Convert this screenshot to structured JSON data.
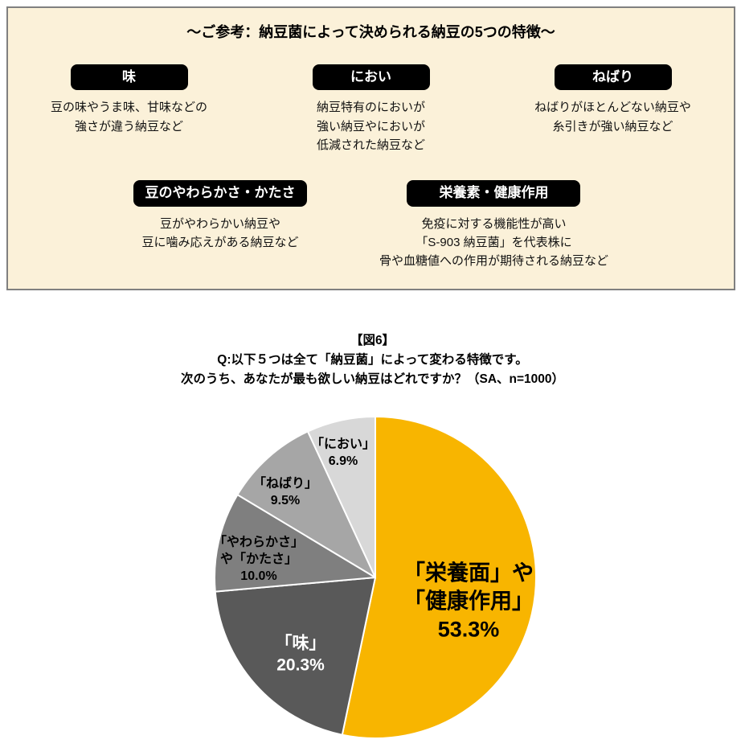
{
  "reference_box": {
    "title": "～ご参考：納豆菌によって決められる納豆の5つの特徴～",
    "features": [
      {
        "label": "味",
        "desc_lines": [
          "豆の味やうま味、甘味などの",
          "強さが違う納豆など"
        ]
      },
      {
        "label": "におい",
        "desc_lines": [
          "納豆特有のにおいが",
          "強い納豆やにおいが",
          "低減された納豆など"
        ]
      },
      {
        "label": "ねばり",
        "desc_lines": [
          "ねばりがほとんどない納豆や",
          "糸引きが強い納豆など"
        ]
      },
      {
        "label": "豆のやわらかさ・かたさ",
        "desc_lines": [
          "豆がやわらかい納豆や",
          "豆に噛み応えがある納豆など"
        ]
      },
      {
        "label": "栄養素・健康作用",
        "desc_lines": [
          "免疫に対する機能性が高い",
          "「S-903 納豆菌」を代表株に",
          "骨や血糖値への作用が期待される納豆など"
        ]
      }
    ]
  },
  "chart": {
    "title_lines": [
      "【図6】",
      "Q:以下５つは全て「納豆菌」によって変わる特徴です。",
      "次のうち、あなたが最も欲しい納豆はどれですか？（SA、n=1000）"
    ]
  },
  "colors": {
    "box_background": "#FBF1D9",
    "box_border": "#808080",
    "badge_background": "#000000",
    "badge_text": "#FFFFFF",
    "accent_yellow": "#F8B500"
  },
  "chart_data": {
    "type": "pie",
    "title": "【図6】",
    "question": "Q:以下５つは全て「納豆菌」によって変わる特徴です。次のうち、あなたが最も欲しい納豆はどれですか？",
    "survey_type": "SA",
    "n": 1000,
    "start_angle_deg": 0,
    "direction": "clockwise",
    "slices": [
      {
        "label": "「栄養面」や「健康作用」",
        "label_lines": [
          "「栄養面」や",
          "「健康作用」"
        ],
        "value": 53.3,
        "pct": "53.3%",
        "color": "#F8B500"
      },
      {
        "label": "「味」",
        "label_lines": [
          "「味」"
        ],
        "value": 20.3,
        "pct": "20.3%",
        "color": "#595959"
      },
      {
        "label": "「やわらかさ」や「かたさ」",
        "label_lines": [
          "「やわらかさ」",
          "や「かたさ」"
        ],
        "value": 10.0,
        "pct": "10.0%",
        "color": "#7F7F7F"
      },
      {
        "label": "「ねばり」",
        "label_lines": [
          "「ねばり」"
        ],
        "value": 9.5,
        "pct": "9.5%",
        "color": "#A6A6A6"
      },
      {
        "label": "「におい」",
        "label_lines": [
          "「におい」"
        ],
        "value": 6.9,
        "pct": "6.9%",
        "color": "#D8D8D8"
      }
    ]
  }
}
